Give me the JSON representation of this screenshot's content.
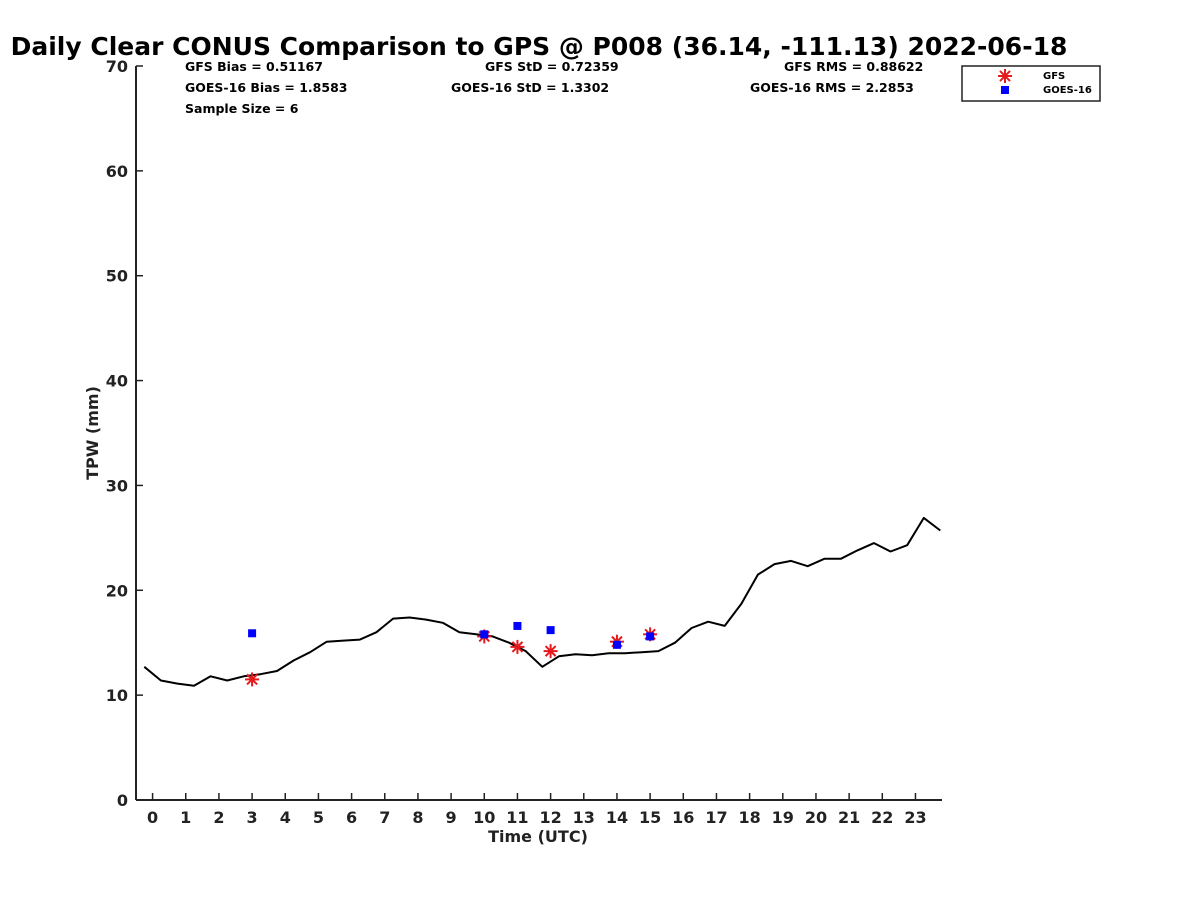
{
  "colors": {
    "gps_line": "#000000",
    "gfs": "#e41a1c",
    "goes16": "#0000ff",
    "axis": "#222222"
  },
  "stats": {
    "gfs_bias": "GFS Bias = 0.51167",
    "gfs_std": "GFS StD = 0.72359",
    "gfs_rms": "GFS RMS = 0.88622",
    "goes_bias": "GOES-16 Bias = 1.8583",
    "goes_std": "GOES-16 StD = 1.3302",
    "goes_rms": "GOES-16 RMS = 2.2853",
    "sample_size": "Sample Size = 6"
  },
  "legend": {
    "placement": "top-right",
    "gfs_label": "GFS",
    "goes_label": "GOES-16"
  },
  "chart_data": {
    "type": "line",
    "title": "Daily Clear CONUS Comparison to GPS @ P008 (36.14, -111.13) 2022-06-18",
    "xlabel": "Time (UTC)",
    "ylabel": "TPW (mm)",
    "xlim": [
      -0.5,
      23.8
    ],
    "ylim": [
      0,
      70
    ],
    "xticks": [
      0,
      1,
      2,
      3,
      4,
      5,
      6,
      7,
      8,
      9,
      10,
      11,
      12,
      13,
      14,
      15,
      16,
      17,
      18,
      19,
      20,
      21,
      22,
      23
    ],
    "yticks": [
      0,
      10,
      20,
      30,
      40,
      50,
      60,
      70
    ],
    "grid": false,
    "series": [
      {
        "kind": "line",
        "x": [
          -0.25,
          0.25,
          0.75,
          1.25,
          1.75,
          2.25,
          2.75,
          3.25,
          3.75,
          4.25,
          4.75,
          5.25,
          5.75,
          6.25,
          6.75,
          7.25,
          7.75,
          8.25,
          8.75,
          9.25,
          9.75,
          10.25,
          10.75,
          11.25,
          11.75,
          12.25,
          12.75,
          13.25,
          13.75,
          14.25,
          14.75,
          15.25,
          15.75,
          16.25,
          16.75,
          17.25,
          17.75,
          18.25,
          18.75,
          19.25,
          19.75,
          20.25,
          20.75,
          21.25,
          21.75,
          22.25,
          22.75,
          23.25,
          23.75
        ],
        "values": [
          12.7,
          11.4,
          11.1,
          10.9,
          11.8,
          11.4,
          11.8,
          12.0,
          12.3,
          13.3,
          14.1,
          15.1,
          15.2,
          15.3,
          16.0,
          17.3,
          17.4,
          17.2,
          16.9,
          16.0,
          15.8,
          15.6,
          15.0,
          14.2,
          12.7,
          13.7,
          13.9,
          13.8,
          14.0,
          14.0,
          14.1,
          14.2,
          15.0,
          16.4,
          17.0,
          16.6,
          18.7,
          21.5,
          22.5,
          22.8,
          22.3,
          23.0,
          23.0,
          23.8,
          24.5,
          23.7,
          24.3,
          26.9,
          25.7
        ]
      },
      {
        "name": "GFS",
        "kind": "scatter-star",
        "x": [
          3,
          10,
          11,
          12,
          14,
          15
        ],
        "values": [
          11.5,
          15.6,
          14.6,
          14.2,
          15.1,
          15.8
        ]
      },
      {
        "name": "GOES-16",
        "kind": "scatter-square",
        "x": [
          3,
          10,
          11,
          12,
          14,
          15
        ],
        "values": [
          15.9,
          15.8,
          16.6,
          16.2,
          14.8,
          15.6
        ]
      }
    ]
  }
}
